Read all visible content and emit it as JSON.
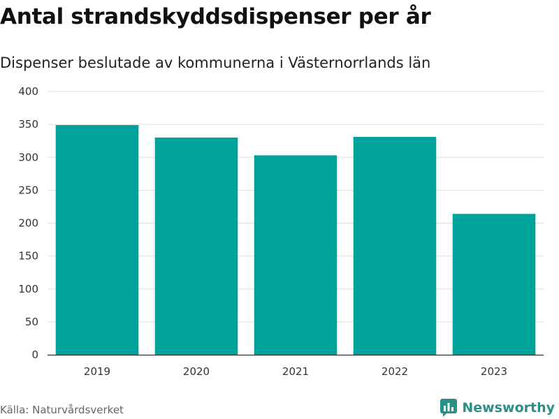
{
  "header": {
    "title": "Antal strandskyddsdispenser per år",
    "subtitle": "Dispenser beslutade av kommunerna i Västernorrlands län"
  },
  "footer": {
    "source": "Källa: Naturvårdsverket",
    "brand": "Newsworthy"
  },
  "colors": {
    "bar": "#00A39A",
    "grid": "#dddddd",
    "brand": "#2a8f86"
  },
  "chart_data": {
    "type": "bar",
    "title": "Antal strandskyddsdispenser per år",
    "subtitle": "Dispenser beslutade av kommunerna i Västernorrlands län",
    "xlabel": "",
    "ylabel": "",
    "categories": [
      "2019",
      "2020",
      "2021",
      "2022",
      "2023"
    ],
    "values": [
      349,
      330,
      303,
      331,
      214
    ],
    "ylim": [
      0,
      400
    ],
    "yticks": [
      0,
      50,
      100,
      150,
      200,
      250,
      300,
      350,
      400
    ],
    "grid": true
  }
}
